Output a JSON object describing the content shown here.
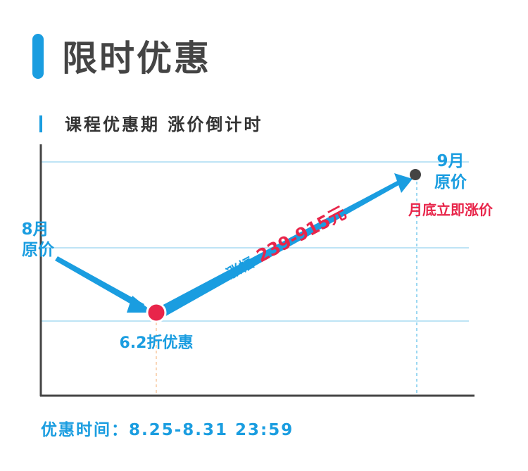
{
  "header": {
    "title": "限时优惠",
    "subtitle": "课程优惠期 涨价倒计时"
  },
  "diagram": {
    "start": {
      "month": "8月",
      "label": "原价"
    },
    "low": {
      "label": "6.2折优惠"
    },
    "rise": {
      "label": "涨幅",
      "amount": "239-915元"
    },
    "end": {
      "month": "9月",
      "label": "原价",
      "note": "月底立即涨价"
    }
  },
  "footer": {
    "text": "优惠时间：8.25-8.31 23:59"
  }
}
